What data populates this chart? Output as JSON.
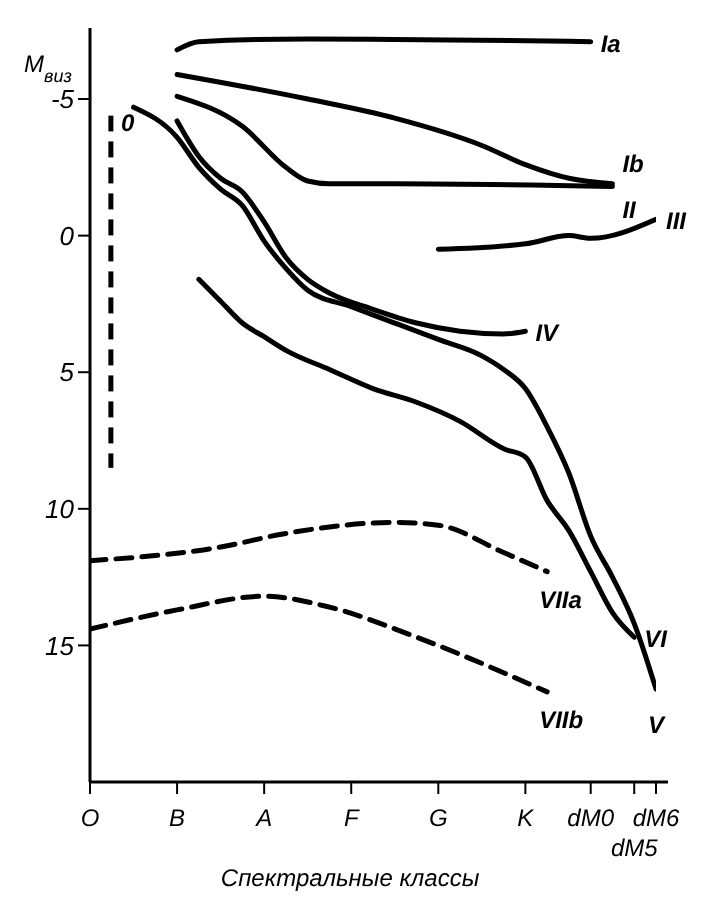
{
  "chart_data": {
    "type": "line",
    "xlabel": "Спектральные классы",
    "ylabel": "M$_{виз}$",
    "categories": [
      "O",
      null,
      null,
      null,
      "B",
      null,
      null,
      null,
      "A",
      null,
      null,
      null,
      "F",
      null,
      null,
      null,
      "G",
      null,
      null,
      null,
      "K",
      null,
      null,
      "dM0",
      null,
      "dM5",
      "dM6"
    ],
    "ylim": [
      20,
      -7.6
    ],
    "yticks": [
      -5,
      0,
      5,
      10,
      15
    ],
    "grid": false,
    "legend": false,
    "marker": "none",
    "series": [
      {
        "name": "0",
        "type": "bar",
        "color": "#000000",
        "line_style": "dashed",
        "base": [
          null,
          8.5,
          null,
          null,
          null,
          null,
          null,
          null,
          null,
          null,
          null,
          null,
          null,
          null,
          null,
          null,
          null,
          null,
          null,
          null,
          null,
          null,
          null,
          null,
          null,
          null,
          null
        ],
        "values": [
          null,
          -12.9,
          null,
          null,
          null,
          null,
          null,
          null,
          null,
          null,
          null,
          null,
          null,
          null,
          null,
          null,
          null,
          null,
          null,
          null,
          null,
          null,
          null,
          null,
          null,
          null,
          null
        ]
      },
      {
        "name": "Ia",
        "color": "#000000",
        "line_style": "solid",
        "values": [
          null,
          null,
          null,
          null,
          -6.8,
          -7.1,
          null,
          null,
          null,
          null,
          -7.2,
          null,
          null,
          null,
          null,
          null,
          null,
          null,
          null,
          null,
          null,
          null,
          null,
          -7.1,
          null,
          null,
          null
        ]
      },
      {
        "name": "Ib",
        "color": "#000000",
        "line_style": "solid",
        "values": [
          null,
          null,
          null,
          null,
          -5.9,
          null,
          null,
          null,
          null,
          null,
          -5.0,
          null,
          null,
          null,
          -4.3,
          null,
          null,
          null,
          -3.3,
          null,
          -2.6,
          null,
          -2.1,
          null,
          -1.9,
          null,
          null
        ]
      },
      {
        "name": "II",
        "color": "#000000",
        "line_style": "solid",
        "values": [
          null,
          null,
          null,
          null,
          -5.1,
          null,
          null,
          -4.0,
          null,
          -2.5,
          -2.0,
          -1.9,
          null,
          null,
          -1.9,
          null,
          null,
          null,
          null,
          null,
          null,
          null,
          null,
          null,
          -1.8,
          null,
          null
        ]
      },
      {
        "name": "III",
        "color": "#000000",
        "line_style": "solid",
        "values": [
          null,
          null,
          null,
          null,
          null,
          null,
          null,
          null,
          null,
          null,
          null,
          null,
          null,
          null,
          null,
          null,
          0.5,
          null,
          null,
          null,
          0.3,
          null,
          0,
          0.1,
          null,
          null,
          -0.6
        ]
      },
      {
        "name": "IV",
        "color": "#000000",
        "line_style": "solid",
        "values": [
          null,
          null,
          null,
          null,
          -4.2,
          -2.9,
          -2.1,
          -1.6,
          -0.5,
          0.8,
          1.6,
          2.1,
          null,
          2.7,
          null,
          3.2,
          null,
          3.5,
          null,
          3.6,
          3.5,
          null,
          null,
          null,
          null,
          null,
          null
        ]
      },
      {
        "name": "V",
        "color": "#000000",
        "line_style": "solid",
        "values": [
          null,
          null,
          -4.7,
          null,
          -3.6,
          -2.5,
          -1.7,
          -1.1,
          0.2,
          1.2,
          2.0,
          null,
          2.6,
          null,
          3.2,
          null,
          3.8,
          null,
          4.4,
          4.9,
          5.6,
          7.0,
          8.7,
          11.0,
          12.5,
          14.2,
          16.6
        ]
      },
      {
        "name": "VI",
        "color": "#000000",
        "line_style": "solid",
        "values": [
          null,
          null,
          null,
          null,
          null,
          1.6,
          2.4,
          3.2,
          3.7,
          4.2,
          null,
          4.9,
          null,
          5.6,
          null,
          6.1,
          null,
          6.8,
          null,
          7.8,
          8.1,
          9.7,
          10.8,
          12.3,
          13.8,
          14.7,
          null
        ]
      },
      {
        "name": "VIIa",
        "color": "#000000",
        "line_style": "dashed",
        "values": [
          11.9,
          null,
          null,
          null,
          null,
          null,
          11.4,
          null,
          null,
          10.9,
          null,
          null,
          null,
          null,
          10.5,
          null,
          10.6,
          null,
          null,
          11.6,
          null,
          12.3,
          null,
          null,
          null,
          null,
          null
        ]
      },
      {
        "name": "VIIb",
        "color": "#000000",
        "line_style": "dashed",
        "values": [
          14.4,
          null,
          null,
          null,
          13.7,
          null,
          null,
          null,
          13.2,
          null,
          null,
          13.6,
          null,
          null,
          null,
          14.7,
          null,
          null,
          null,
          null,
          null,
          16.7,
          null,
          null,
          null,
          null,
          null
        ]
      }
    ]
  }
}
